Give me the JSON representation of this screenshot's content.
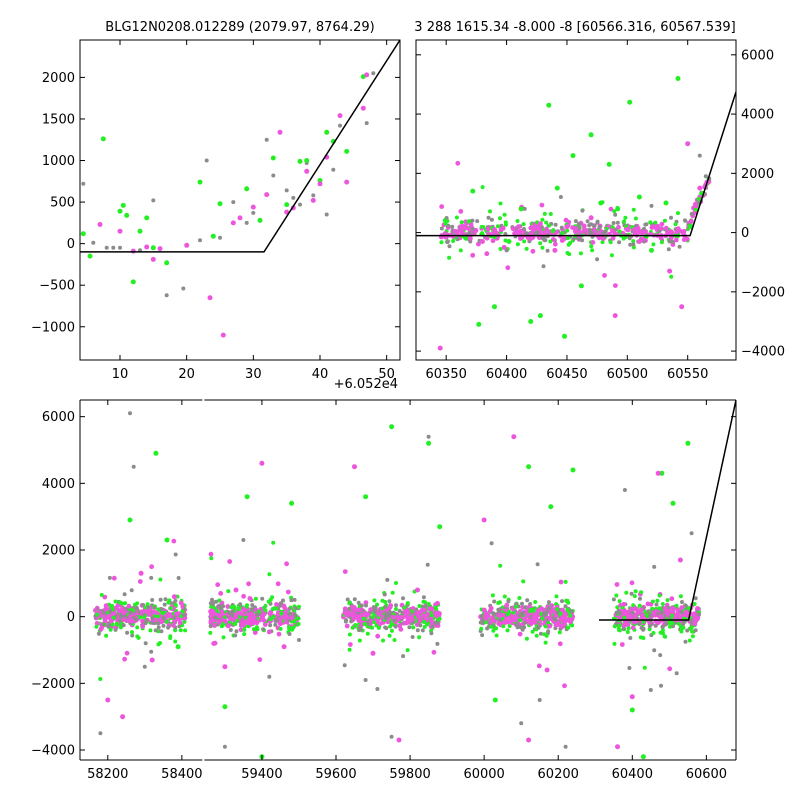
{
  "chart_data": [
    {
      "type": "scatter",
      "title": "BLG12N0208.012289 (2079.97, 8764.29)",
      "offset_label": "+6.052e4",
      "xlim": [
        4,
        52
      ],
      "ylim": [
        -1400,
        2450
      ],
      "xticks": [
        10,
        20,
        30,
        40,
        50
      ],
      "yticks": [
        -1000,
        -500,
        0,
        500,
        1000,
        1500,
        2000
      ],
      "colors": {
        "grey": "#8c8c8c",
        "green": "#22f022",
        "magenta": "#ee55dd",
        "model": "#000000"
      },
      "model_line": {
        "x": [
          4,
          31.6,
          52
        ],
        "y": [
          -100,
          -100,
          2450
        ]
      },
      "series": [
        {
          "color_key": "grey",
          "x": [
            4.5,
            6,
            9,
            10,
            15,
            17,
            19.5,
            22,
            23,
            27,
            29,
            32,
            33,
            35,
            37,
            38,
            39,
            41,
            43,
            47,
            48,
            30,
            25,
            36,
            42,
            13,
            8
          ],
          "y": [
            720,
            10,
            -50,
            -50,
            520,
            -620,
            -540,
            40,
            1000,
            500,
            250,
            1250,
            820,
            640,
            470,
            970,
            580,
            350,
            1420,
            1450,
            2050,
            370,
            70,
            550,
            890,
            -80,
            -50
          ]
        },
        {
          "color_key": "green",
          "x": [
            4.5,
            5.5,
            7.5,
            10,
            10.5,
            11,
            12,
            13,
            14,
            15,
            17,
            22,
            24,
            25,
            29,
            31,
            33,
            35,
            37,
            38,
            40,
            41,
            42,
            44,
            46.5
          ],
          "y": [
            120,
            -150,
            1260,
            390,
            460,
            340,
            -460,
            150,
            310,
            -50,
            -230,
            740,
            90,
            480,
            660,
            280,
            1030,
            470,
            990,
            1000,
            760,
            1340,
            1230,
            1110,
            2010
          ]
        },
        {
          "color_key": "magenta",
          "x": [
            7,
            10,
            12,
            14,
            15,
            16,
            23.5,
            25.5,
            27,
            30,
            32,
            34,
            35,
            36,
            38,
            39,
            40,
            41,
            43,
            44,
            46.5,
            47,
            20,
            28
          ],
          "y": [
            230,
            150,
            -90,
            -40,
            -190,
            -60,
            -650,
            -1100,
            250,
            440,
            590,
            1340,
            380,
            430,
            870,
            520,
            720,
            1040,
            1540,
            740,
            1630,
            2030,
            -20,
            310
          ]
        }
      ]
    },
    {
      "type": "scatter",
      "title": "3 288 1615.34 -8.000 -8 [60566.316, 60567.539]",
      "xlim": [
        60325,
        60590
      ],
      "ylim": [
        -4300,
        6500
      ],
      "xticks": [
        60350,
        60400,
        60450,
        60500,
        60550
      ],
      "yticks": [
        -4000,
        -2000,
        0,
        2000,
        4000,
        6000
      ],
      "colors": {
        "grey": "#8c8c8c",
        "green": "#22f022",
        "magenta": "#ee55dd",
        "model": "#000000"
      },
      "model_line": {
        "x": [
          60325,
          60552,
          60590
        ],
        "y": [
          -100,
          -100,
          4750
        ]
      },
      "series": [
        {
          "color_key": "grey",
          "x": [
            60355,
            60370,
            60385,
            60400,
            60415,
            60430,
            60445,
            60460,
            60475,
            60490,
            60505,
            60520,
            60535,
            60548,
            60560,
            60565
          ],
          "y": [
            200,
            -300,
            500,
            -600,
            800,
            -200,
            1200,
            300,
            -900,
            600,
            -400,
            900,
            -300,
            400,
            2600,
            1900
          ]
        },
        {
          "color_key": "green",
          "x": [
            60372,
            60377,
            60390,
            60402,
            60412,
            60420,
            60428,
            60435,
            60442,
            60448,
            60455,
            60462,
            60470,
            60478,
            60485,
            60492,
            60502,
            60510,
            60520,
            60532,
            60542,
            60552
          ],
          "y": [
            1400,
            -3100,
            -2500,
            -300,
            800,
            -3000,
            -2800,
            4300,
            1500,
            -3500,
            2600,
            -1800,
            3300,
            1000,
            2300,
            800,
            4400,
            1200,
            -600,
            1000,
            5200,
            200
          ]
        },
        {
          "color_key": "magenta",
          "x": [
            60345,
            60355,
            60362,
            60370,
            60380,
            60390,
            60398,
            60410,
            60420,
            60428,
            60440,
            60450,
            60460,
            60470,
            60480,
            60490,
            60500,
            60510,
            60522,
            60535,
            60545,
            60550,
            60560,
            60566
          ],
          "y": [
            -3900,
            -100,
            200,
            -200,
            -300,
            100,
            -500,
            200,
            -200,
            300,
            -600,
            200,
            -100,
            500,
            -200,
            -2800,
            100,
            -300,
            200,
            -1300,
            -2500,
            3000,
            1500,
            1700
          ]
        }
      ]
    },
    {
      "type": "scatter",
      "title": "",
      "xlim": [
        58125,
        60680
      ],
      "ylim": [
        -4300,
        6500
      ],
      "x_break": [
        58450,
        59250
      ],
      "xticks": [
        58200,
        58400,
        59400,
        59600,
        59800,
        60000,
        60200,
        60400,
        60600
      ],
      "yticks": [
        -4000,
        -2000,
        0,
        2000,
        4000,
        6000
      ],
      "colors": {
        "grey": "#8c8c8c",
        "green": "#22f022",
        "magenta": "#ee55dd",
        "model": "#000000"
      },
      "model_line": {
        "x": [
          60310,
          60552,
          60680
        ],
        "y": [
          -100,
          -100,
          6500
        ]
      },
      "clusters": [
        [
          58165,
          58410
        ],
        [
          59260,
          59500
        ],
        [
          59620,
          59880
        ],
        [
          59990,
          60240
        ],
        [
          60350,
          60580
        ]
      ],
      "series": [
        {
          "color_key": "grey",
          "x": [
            58180,
            58260,
            58270,
            58300,
            58320,
            59300,
            59350,
            59420,
            59500,
            59680,
            59750,
            59850,
            60020,
            60100,
            60150,
            60220,
            60380,
            60450,
            60520,
            60560
          ],
          "y": [
            -3500,
            6100,
            4500,
            -1500,
            500,
            -3900,
            2300,
            -1800,
            -700,
            -1900,
            -3600,
            5400,
            2200,
            -3200,
            -2500,
            -3900,
            3800,
            -2200,
            -1700,
            2500
          ]
        },
        {
          "color_key": "green",
          "x": [
            58260,
            58330,
            58360,
            58390,
            59300,
            59360,
            59400,
            59480,
            59680,
            59750,
            59850,
            59880,
            60030,
            60120,
            60180,
            60240,
            60400,
            60430,
            60480,
            60510,
            60550
          ],
          "y": [
            2900,
            4900,
            2300,
            -900,
            -2700,
            3600,
            -4200,
            3400,
            3600,
            5700,
            5200,
            2700,
            -2500,
            4500,
            3300,
            4400,
            -2800,
            -4200,
            4300,
            3400,
            5200
          ]
        },
        {
          "color_key": "magenta",
          "x": [
            58200,
            58240,
            58290,
            58320,
            58380,
            59300,
            59330,
            59400,
            59460,
            59650,
            59700,
            59770,
            59820,
            60000,
            60080,
            60120,
            60170,
            60360,
            60400,
            60470,
            60530
          ],
          "y": [
            -2500,
            -3000,
            1300,
            -1300,
            600,
            -1500,
            800,
            4600,
            -900,
            4500,
            -1100,
            -3700,
            800,
            2900,
            5400,
            -3700,
            -1600,
            -3900,
            -2400,
            4300,
            1700
          ]
        }
      ]
    }
  ]
}
